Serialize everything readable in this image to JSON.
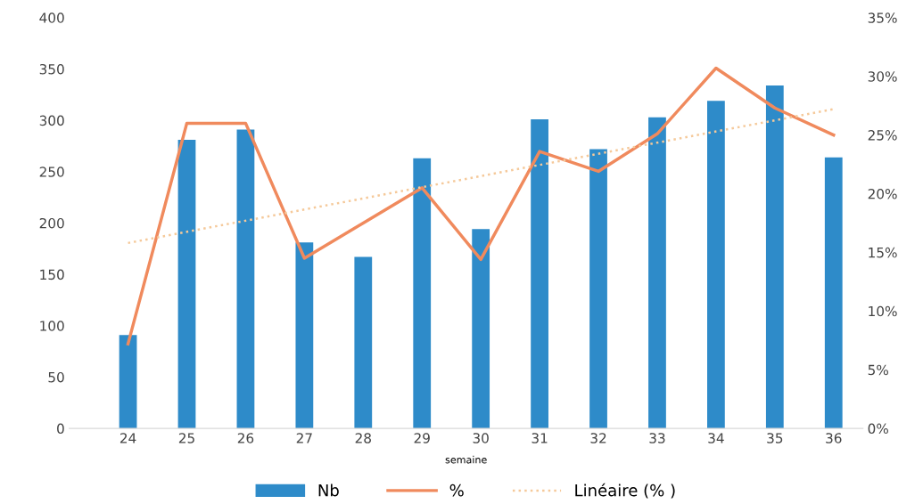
{
  "chart_data": {
    "type": "bar",
    "xlabel": "semaine",
    "categories": [
      "24",
      "25",
      "26",
      "27",
      "28",
      "29",
      "30",
      "31",
      "32",
      "33",
      "34",
      "35",
      "36"
    ],
    "series": [
      {
        "name": "Nb",
        "color": "#2e8bc9",
        "values": [
          91,
          281,
          291,
          181,
          167,
          263,
          194,
          301,
          272,
          303,
          319,
          334,
          264
        ]
      },
      {
        "name": "%",
        "type": "line",
        "axis": "y2",
        "color": "#f08a5d",
        "values": [
          7.2,
          26.0,
          26.0,
          14.5,
          17.5,
          20.5,
          14.4,
          23.6,
          21.9,
          25.1,
          30.7,
          27.3,
          25.0
        ]
      },
      {
        "name": "Linéaire (% )",
        "type": "line",
        "axis": "y2",
        "color": "#f5c99a",
        "line_style": "dotted",
        "x": [
          "24",
          "36"
        ],
        "values": [
          15.8,
          27.2
        ]
      }
    ],
    "ylim": [
      0,
      400
    ],
    "yticks": [
      0,
      50,
      100,
      150,
      200,
      250,
      300,
      350,
      400
    ],
    "y2lim": [
      0,
      35
    ],
    "y2ticks": [
      {
        "value": 0,
        "label": "0%"
      },
      {
        "value": 5,
        "label": "5%"
      },
      {
        "value": 10,
        "label": "10%"
      },
      {
        "value": 15,
        "label": "15%"
      },
      {
        "value": 20,
        "label": "20%"
      },
      {
        "value": 25,
        "label": "25%"
      },
      {
        "value": 30,
        "label": "30%"
      },
      {
        "value": 35,
        "label": "35%"
      }
    ],
    "legend": "bottom",
    "grid": false
  }
}
